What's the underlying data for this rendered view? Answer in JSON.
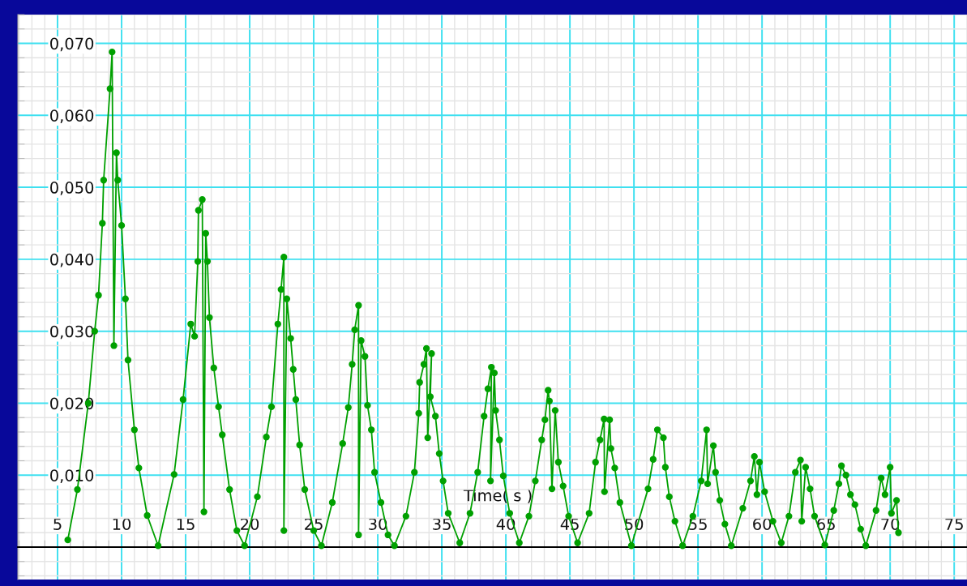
{
  "chart_data": {
    "type": "line",
    "xlabel": "Time( s )",
    "xlim": [
      1.9,
      76
    ],
    "ylim": [
      -0.0045,
      0.074
    ],
    "xticks": [
      5,
      10,
      15,
      20,
      25,
      30,
      35,
      40,
      45,
      50,
      55,
      60,
      65,
      70,
      75
    ],
    "yticks": [
      {
        "value": 0.01,
        "label": "0,010"
      },
      {
        "value": 0.02,
        "label": "0,020"
      },
      {
        "value": 0.03,
        "label": "0,030"
      },
      {
        "value": 0.04,
        "label": "0,040"
      },
      {
        "value": 0.05,
        "label": "0,050"
      },
      {
        "value": 0.06,
        "label": "0,060"
      },
      {
        "value": 0.07,
        "label": "0,070"
      }
    ],
    "grid": true,
    "marker": "circle",
    "line_style": "solid",
    "series": [
      {
        "color": "#00a000",
        "x": [
          5.8,
          6.55,
          7.4,
          7.9,
          8.2,
          8.5,
          8.6,
          9.1,
          9.26,
          9.4,
          9.6,
          9.7,
          10.0,
          10.3,
          10.5,
          11.0,
          11.35,
          12.0,
          12.85,
          14.1,
          14.8,
          15.4,
          15.7,
          15.95,
          16.0,
          16.3,
          16.43,
          16.57,
          16.7,
          16.86,
          17.2,
          17.57,
          17.86,
          18.43,
          19.0,
          19.6,
          20.6,
          21.3,
          21.7,
          22.2,
          22.45,
          22.67,
          22.67,
          22.9,
          23.2,
          23.4,
          23.6,
          23.9,
          24.3,
          25.0,
          25.6,
          26.45,
          27.26,
          27.7,
          28.0,
          28.2,
          28.5,
          28.5,
          28.7,
          29.0,
          29.2,
          29.5,
          29.75,
          30.25,
          30.8,
          31.3,
          32.2,
          32.86,
          33.2,
          33.27,
          33.6,
          33.8,
          33.9,
          34.2,
          34.1,
          34.5,
          34.8,
          35.1,
          35.5,
          36.4,
          37.2,
          37.8,
          38.3,
          38.6,
          38.87,
          38.8,
          39.1,
          39.2,
          39.5,
          39.8,
          40.3,
          41.05,
          41.8,
          42.3,
          42.8,
          43.05,
          43.3,
          43.4,
          43.6,
          43.85,
          44.1,
          44.47,
          44.9,
          45.6,
          46.5,
          47.0,
          47.35,
          47.67,
          47.7,
          48.1,
          48.2,
          48.5,
          48.9,
          49.8,
          51.1,
          51.5,
          51.83,
          52.3,
          52.45,
          52.76,
          53.2,
          53.8,
          54.6,
          55.25,
          55.67,
          55.75,
          56.2,
          56.37,
          56.7,
          57.1,
          57.6,
          58.5,
          59.1,
          59.4,
          59.6,
          59.8,
          60.2,
          60.85,
          61.5,
          62.1,
          62.6,
          63.0,
          63.1,
          63.4,
          63.75,
          64.1,
          64.9,
          65.6,
          66.0,
          66.2,
          66.55,
          66.9,
          67.25,
          67.7,
          68.1,
          68.9,
          69.3,
          69.6,
          70.0,
          70.1,
          70.5,
          70.65
        ],
        "values": [
          0.001,
          0.008,
          0.02,
          0.03,
          0.035,
          0.045,
          0.051,
          0.0637,
          0.0688,
          0.028,
          0.0548,
          0.051,
          0.0447,
          0.0345,
          0.026,
          0.0163,
          0.011,
          0.0044,
          0.0002,
          0.0101,
          0.0205,
          0.031,
          0.0293,
          0.0397,
          0.0468,
          0.0483,
          0.0049,
          0.0436,
          0.0397,
          0.0319,
          0.0249,
          0.0195,
          0.0156,
          0.008,
          0.0023,
          0.0002,
          0.007,
          0.0153,
          0.0195,
          0.031,
          0.0358,
          0.0403,
          0.0023,
          0.0345,
          0.029,
          0.0247,
          0.0205,
          0.0142,
          0.008,
          0.0023,
          0.0002,
          0.0062,
          0.0144,
          0.0194,
          0.0254,
          0.0302,
          0.0336,
          0.0017,
          0.0287,
          0.0265,
          0.0197,
          0.0163,
          0.0104,
          0.0062,
          0.0017,
          0.0002,
          0.0043,
          0.0104,
          0.0186,
          0.0229,
          0.0254,
          0.0276,
          0.0152,
          0.0269,
          0.0209,
          0.0182,
          0.013,
          0.0092,
          0.0047,
          0.0006,
          0.0047,
          0.0104,
          0.0182,
          0.022,
          0.025,
          0.0092,
          0.0242,
          0.019,
          0.0149,
          0.0099,
          0.0047,
          0.0006,
          0.0043,
          0.0092,
          0.0149,
          0.0177,
          0.0218,
          0.0203,
          0.0081,
          0.019,
          0.0118,
          0.0085,
          0.0043,
          0.0006,
          0.0047,
          0.0118,
          0.0149,
          0.0178,
          0.0077,
          0.0177,
          0.0137,
          0.011,
          0.0062,
          0.0002,
          0.0081,
          0.0122,
          0.0163,
          0.0152,
          0.0111,
          0.007,
          0.0036,
          0.0002,
          0.0043,
          0.0092,
          0.0163,
          0.0088,
          0.0141,
          0.0104,
          0.0065,
          0.0032,
          0.0002,
          0.0054,
          0.0092,
          0.0126,
          0.0073,
          0.0118,
          0.0077,
          0.0036,
          0.0006,
          0.0043,
          0.0104,
          0.0121,
          0.0036,
          0.0111,
          0.0081,
          0.0043,
          0.0003,
          0.0051,
          0.0088,
          0.0113,
          0.01,
          0.0073,
          0.0059,
          0.0025,
          0.0002,
          0.0051,
          0.0096,
          0.0073,
          0.0111,
          0.0047,
          0.0065,
          0.002
        ]
      }
    ]
  }
}
